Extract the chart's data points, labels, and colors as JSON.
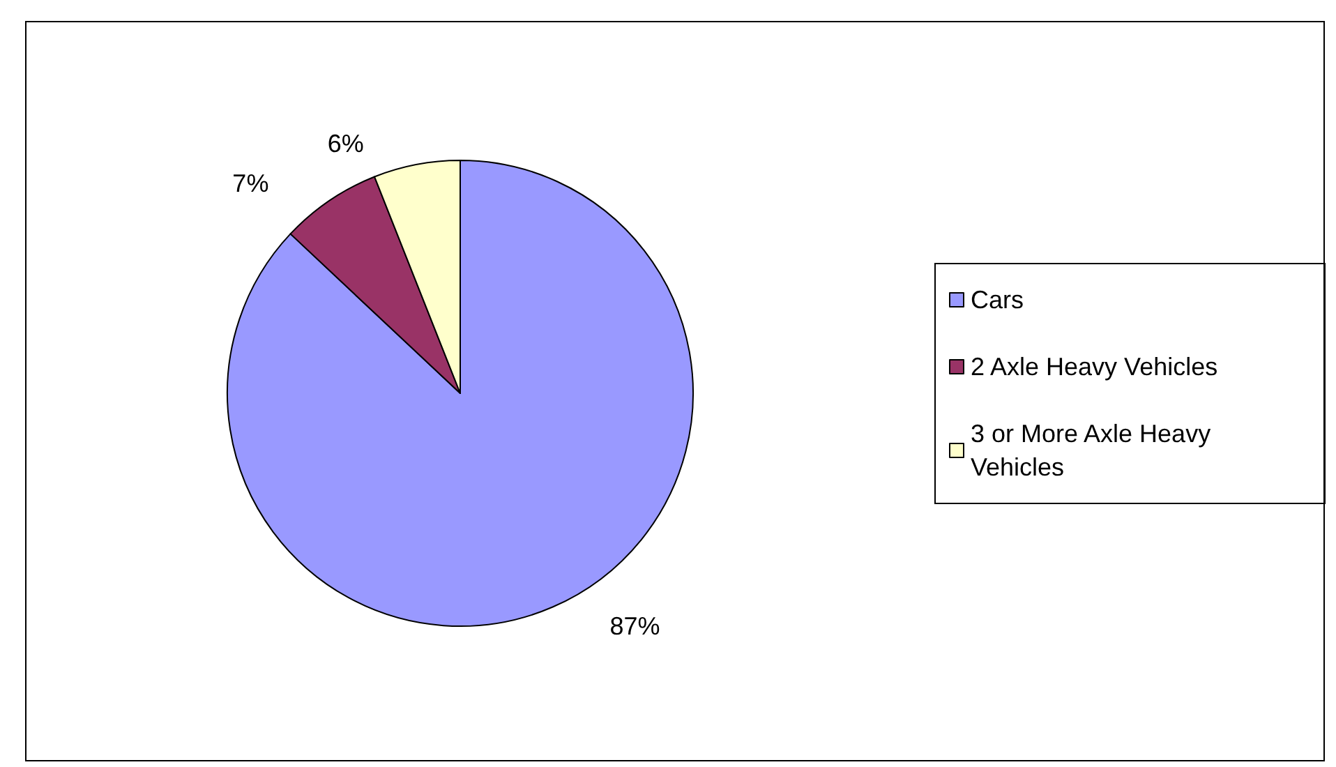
{
  "chart_data": {
    "type": "pie",
    "categories": [
      "Cars",
      "2 Axle Heavy Vehicles",
      "3 or More Axle Heavy Vehicles"
    ],
    "values": [
      87,
      7,
      6
    ],
    "colors": [
      "#9999ff",
      "#993366",
      "#ffffcc"
    ],
    "value_labels": [
      "87%",
      "7%",
      "6%"
    ],
    "legend": "right"
  }
}
